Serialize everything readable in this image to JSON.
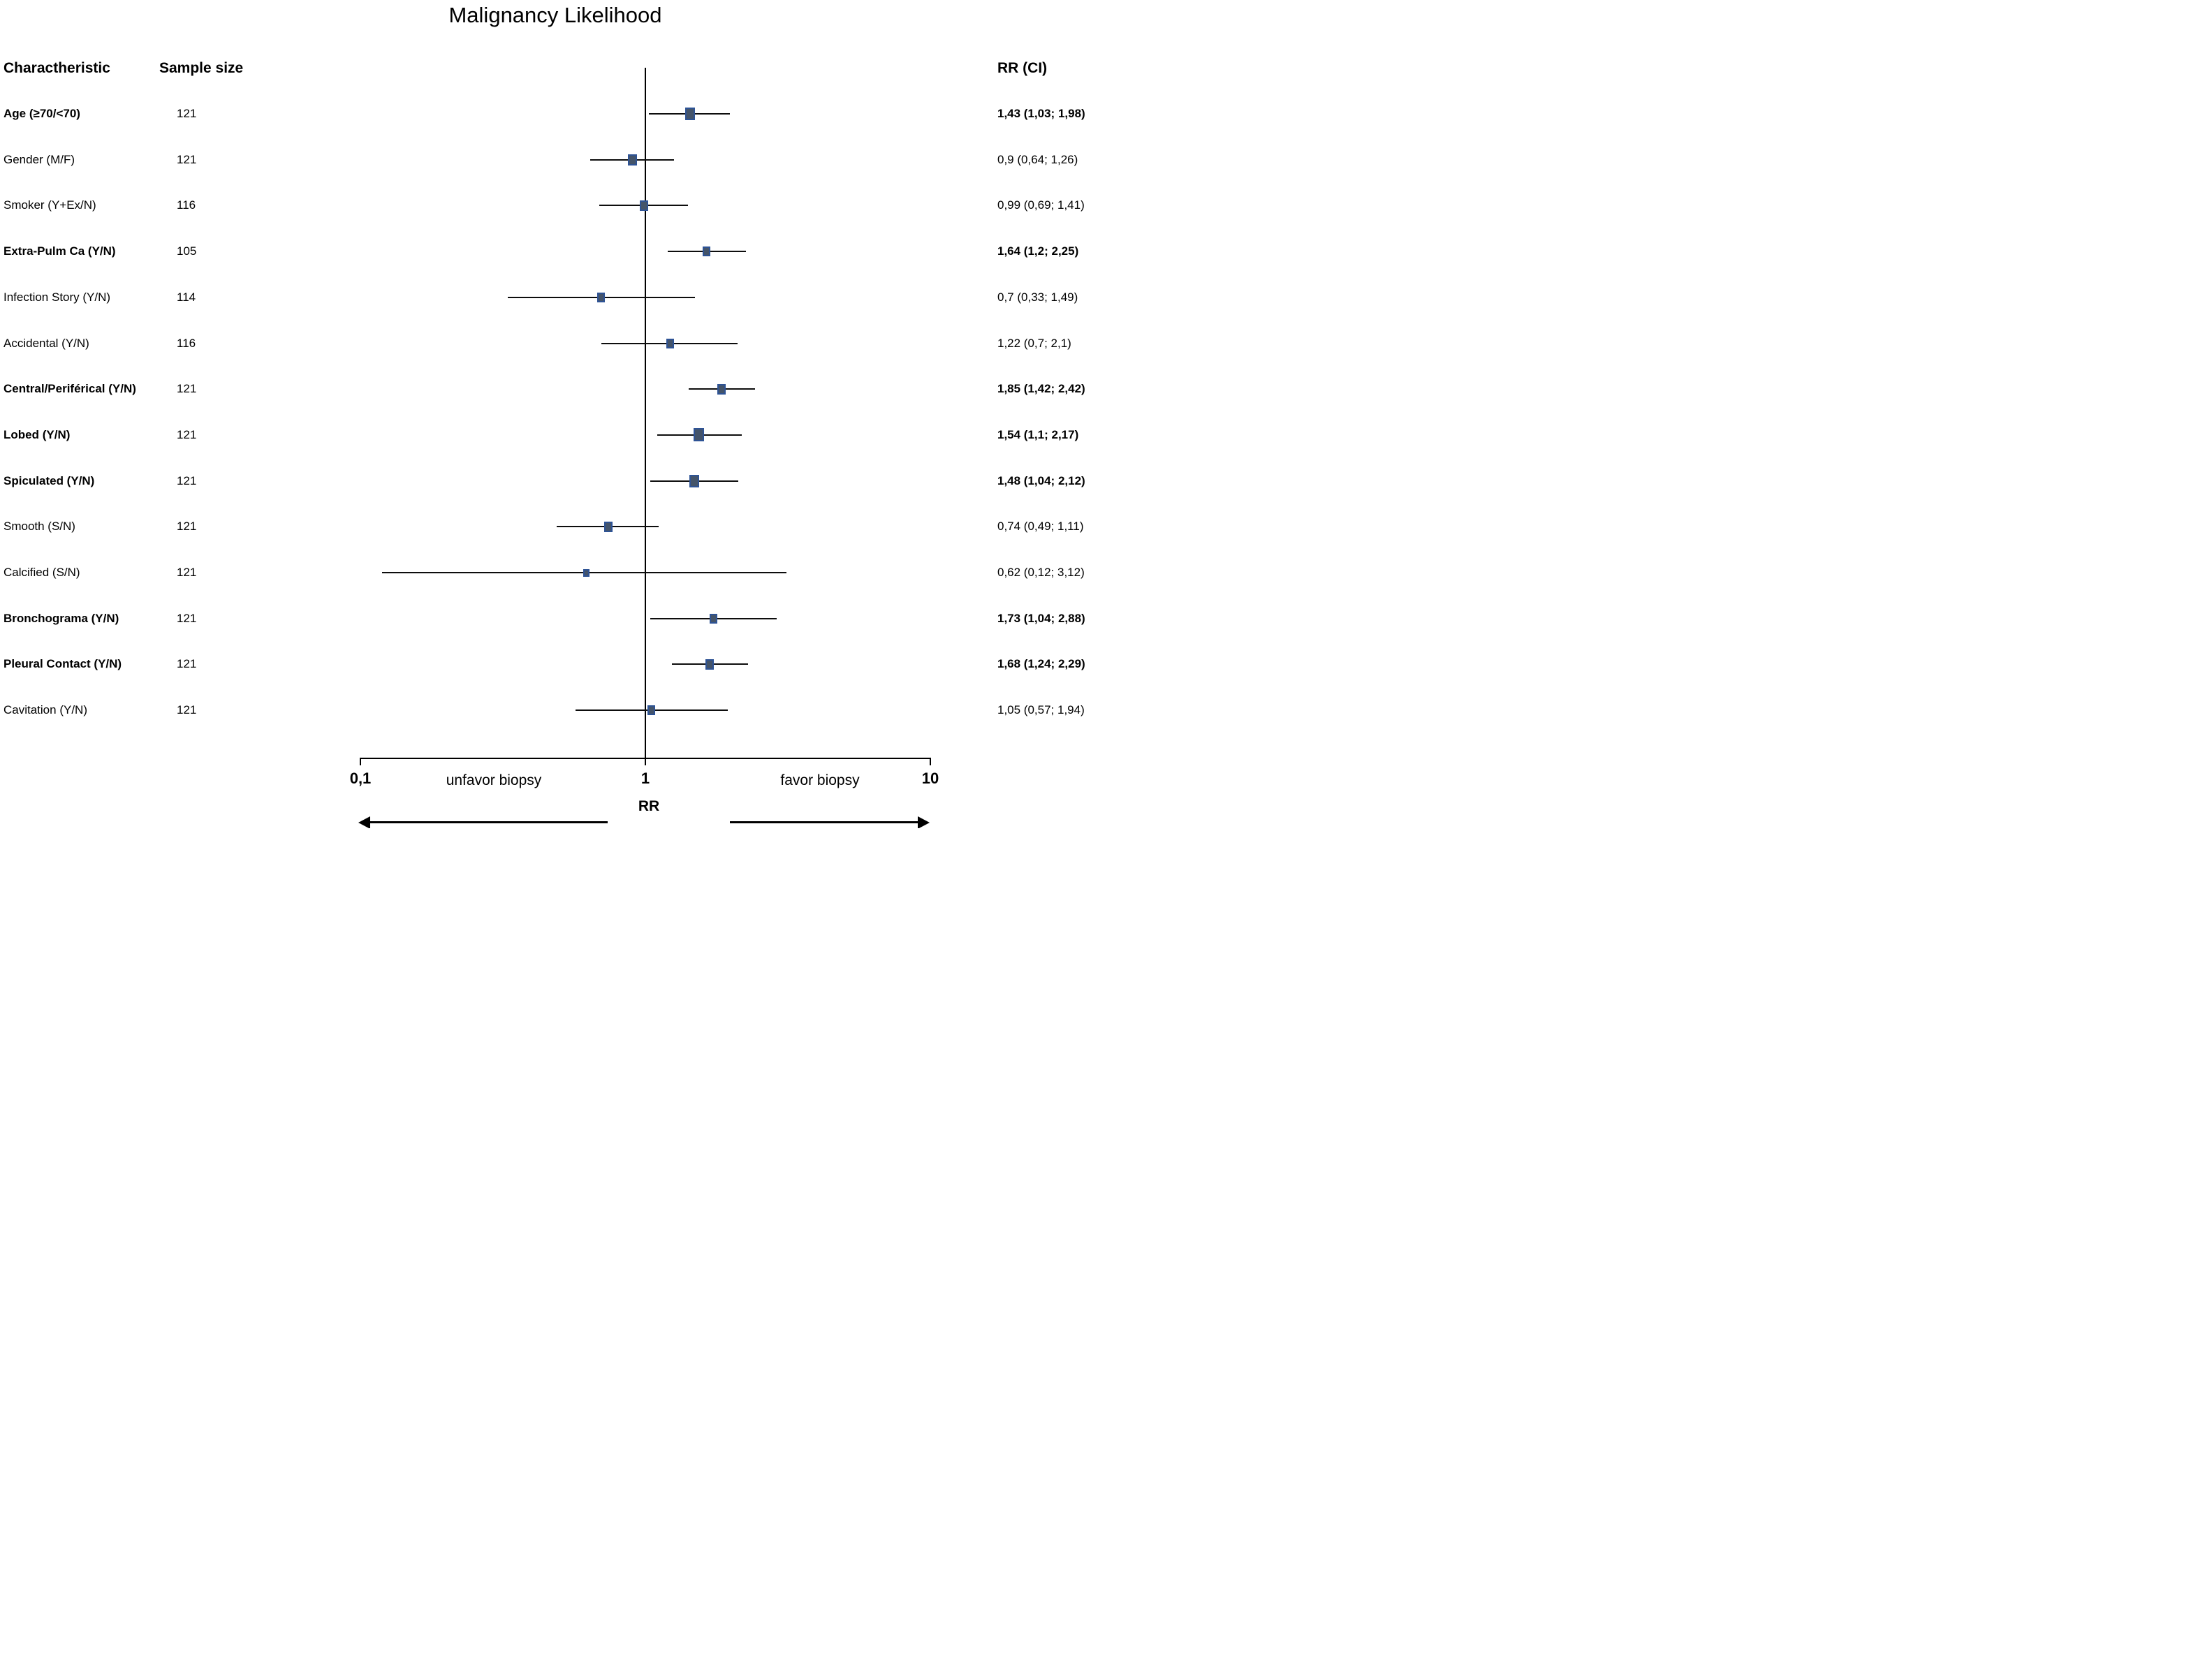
{
  "title": "Malignancy Likelihood",
  "columns": {
    "characteristic": "Charactheristic",
    "sample_size": "Sample size",
    "rr_ci": "RR (CI)"
  },
  "axis": {
    "scale": "log10",
    "min": 0.1,
    "center": 1,
    "max": 10,
    "tick_labels": [
      "0,1",
      "1",
      "10"
    ],
    "left_label": "unfavor biopsy",
    "right_label": "favor biopsy",
    "title": "RR"
  },
  "colors": {
    "marker_fill": "#44546A",
    "marker_border": "#2E5395",
    "line": "#000000"
  },
  "chart_data": {
    "type": "scatter",
    "subtype": "forest-plot",
    "title": "Malignancy Likelihood",
    "x_scale": "log10",
    "x_range": [
      0.1,
      10
    ],
    "x_tick_labels": [
      "0,1",
      "1",
      "10"
    ],
    "xlabel": "RR",
    "left_direction_label": "unfavor biopsy",
    "right_direction_label": "favor biopsy",
    "rows": [
      {
        "label": "Age (≥70/<70)",
        "sample_size": "121",
        "rr": 1.43,
        "ci_low": 1.03,
        "ci_high": 1.98,
        "rr_ci_text": "1,43 (1,03; 1,98)",
        "bold": true,
        "marker_size": 14
      },
      {
        "label": "Gender (M/F)",
        "sample_size": "121",
        "rr": 0.9,
        "ci_low": 0.64,
        "ci_high": 1.26,
        "rr_ci_text": "0,9 (0,64; 1,26)",
        "bold": false,
        "marker_size": 13
      },
      {
        "label": "Smoker (Y+Ex/N)",
        "sample_size": "116",
        "rr": 0.99,
        "ci_low": 0.69,
        "ci_high": 1.41,
        "rr_ci_text": "0,99 (0,69; 1,41)",
        "bold": false,
        "marker_size": 12
      },
      {
        "label": "Extra-Pulm Ca (Y/N)",
        "sample_size": "105",
        "rr": 1.64,
        "ci_low": 1.2,
        "ci_high": 2.25,
        "rr_ci_text": "1,64 (1,2; 2,25)",
        "bold": true,
        "marker_size": 11
      },
      {
        "label": "Infection Story (Y/N)",
        "sample_size": "114",
        "rr": 0.7,
        "ci_low": 0.33,
        "ci_high": 1.49,
        "rr_ci_text": "0,7 (0,33; 1,49)",
        "bold": false,
        "marker_size": 11
      },
      {
        "label": "Accidental (Y/N)",
        "sample_size": "116",
        "rr": 1.22,
        "ci_low": 0.7,
        "ci_high": 2.1,
        "rr_ci_text": "1,22 (0,7; 2,1)",
        "bold": false,
        "marker_size": 11
      },
      {
        "label": "Central/Periférical (Y/N)",
        "sample_size": "121",
        "rr": 1.85,
        "ci_low": 1.42,
        "ci_high": 2.42,
        "rr_ci_text": "1,85 (1,42; 2,42)",
        "bold": true,
        "marker_size": 12
      },
      {
        "label": "Lobed (Y/N)",
        "sample_size": "121",
        "rr": 1.54,
        "ci_low": 1.1,
        "ci_high": 2.17,
        "rr_ci_text": "1,54 (1,1; 2,17)",
        "bold": true,
        "marker_size": 15
      },
      {
        "label": "Spiculated (Y/N)",
        "sample_size": "121",
        "rr": 1.48,
        "ci_low": 1.04,
        "ci_high": 2.12,
        "rr_ci_text": "1,48 (1,04; 2,12)",
        "bold": true,
        "marker_size": 14
      },
      {
        "label": "Smooth (S/N)",
        "sample_size": "121",
        "rr": 0.74,
        "ci_low": 0.49,
        "ci_high": 1.11,
        "rr_ci_text": "0,74 (0,49; 1,11)",
        "bold": false,
        "marker_size": 12
      },
      {
        "label": "Calcified (S/N)",
        "sample_size": "121",
        "rr": 0.62,
        "ci_low": 0.12,
        "ci_high": 3.12,
        "rr_ci_text": "0,62 (0,12; 3,12)",
        "bold": false,
        "marker_size": 9
      },
      {
        "label": "Bronchograma (Y/N)",
        "sample_size": "121",
        "rr": 1.73,
        "ci_low": 1.04,
        "ci_high": 2.88,
        "rr_ci_text": "1,73 (1,04; 2,88)",
        "bold": true,
        "marker_size": 11
      },
      {
        "label": "Pleural Contact (Y/N)",
        "sample_size": "121",
        "rr": 1.68,
        "ci_low": 1.24,
        "ci_high": 2.29,
        "rr_ci_text": "1,68 (1,24; 2,29)",
        "bold": true,
        "marker_size": 12
      },
      {
        "label": "Cavitation (Y/N)",
        "sample_size": "121",
        "rr": 1.05,
        "ci_low": 0.57,
        "ci_high": 1.94,
        "rr_ci_text": "1,05 (0,57; 1,94)",
        "bold": false,
        "marker_size": 11
      }
    ]
  }
}
